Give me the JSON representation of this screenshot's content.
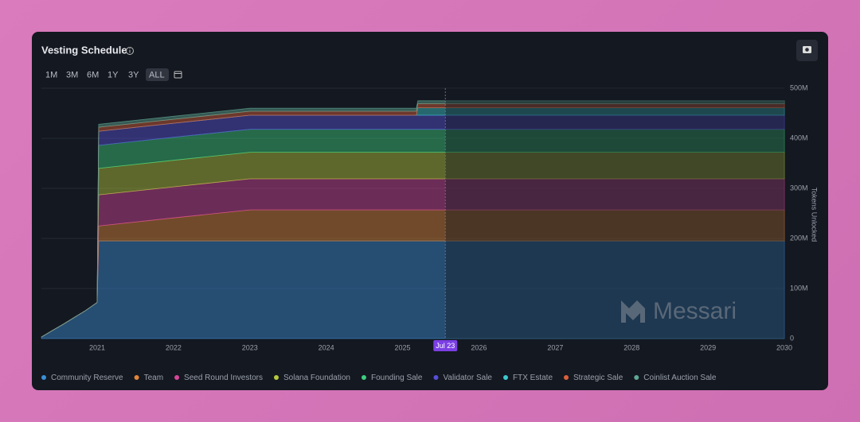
{
  "chart_data": {
    "type": "stacked-area",
    "title": "Vesting Schedule",
    "range_buttons": [
      "1M",
      "3M",
      "6M",
      "1Y",
      "3Y",
      "ALL"
    ],
    "active_range": "ALL",
    "y_label": "Tokens Unlocked",
    "x": [
      2020.27,
      2020.4,
      2020.55,
      2020.7,
      2020.85,
      2021.0,
      2021.02,
      2022.0,
      2023.0,
      2025.18,
      2025.2,
      2030.0
    ],
    "xlim": [
      2020.27,
      2030
    ],
    "xticks": [
      2021,
      2022,
      2023,
      2024,
      2025,
      2026,
      2027,
      2028,
      2029,
      2030
    ],
    "ylim": [
      0,
      500
    ],
    "yticks": [
      0,
      {
        "value": 100,
        "label": "100M"
      },
      {
        "value": 200,
        "label": "200M"
      },
      {
        "value": 300,
        "label": "300M"
      },
      {
        "value": 400,
        "label": "400M"
      },
      {
        "value": 500,
        "label": "500M"
      }
    ],
    "grid": true,
    "marker": {
      "x": 2025.56,
      "label": "Jul 23"
    },
    "watermark": "Messari",
    "series": [
      {
        "name": "Community Reserve",
        "color": "#3b8fd6",
        "values": [
          3,
          15,
          28,
          42,
          56,
          72,
          195,
          195,
          195,
          195,
          195,
          195
        ]
      },
      {
        "name": "Team",
        "color": "#e0873a",
        "values": [
          0,
          0,
          0,
          0,
          0,
          0,
          30,
          46,
          62,
          62,
          62,
          62
        ]
      },
      {
        "name": "Seed Round Investors",
        "color": "#d5479b",
        "values": [
          0,
          0,
          0,
          0,
          0,
          0,
          62,
          62,
          62,
          62,
          62,
          62
        ]
      },
      {
        "name": "Solana Foundation",
        "color": "#b7c93c",
        "values": [
          0,
          0,
          0,
          0,
          0,
          0,
          53,
          53,
          53,
          53,
          53,
          53
        ]
      },
      {
        "name": "Founding Sale",
        "color": "#3ccf7f",
        "values": [
          0,
          0,
          0,
          0,
          0,
          0,
          46,
          46,
          46,
          46,
          46,
          46
        ]
      },
      {
        "name": "Validator Sale",
        "color": "#5650d8",
        "values": [
          0,
          0,
          0,
          0,
          0,
          0,
          28,
          28,
          28,
          28,
          28,
          28
        ]
      },
      {
        "name": "FTX Estate",
        "color": "#3cc9cf",
        "values": [
          0,
          0,
          0,
          0,
          0,
          0,
          0,
          0,
          0,
          0,
          15,
          15
        ]
      },
      {
        "name": "Strategic Sale",
        "color": "#d9603c",
        "values": [
          0,
          0,
          0,
          0,
          0,
          0,
          8,
          8,
          8,
          8,
          8,
          8
        ]
      },
      {
        "name": "Coinlist Auction Sale",
        "color": "#5fa894",
        "values": [
          0,
          0,
          0,
          0,
          0,
          0,
          6,
          6,
          6,
          6,
          6,
          6
        ]
      }
    ]
  }
}
